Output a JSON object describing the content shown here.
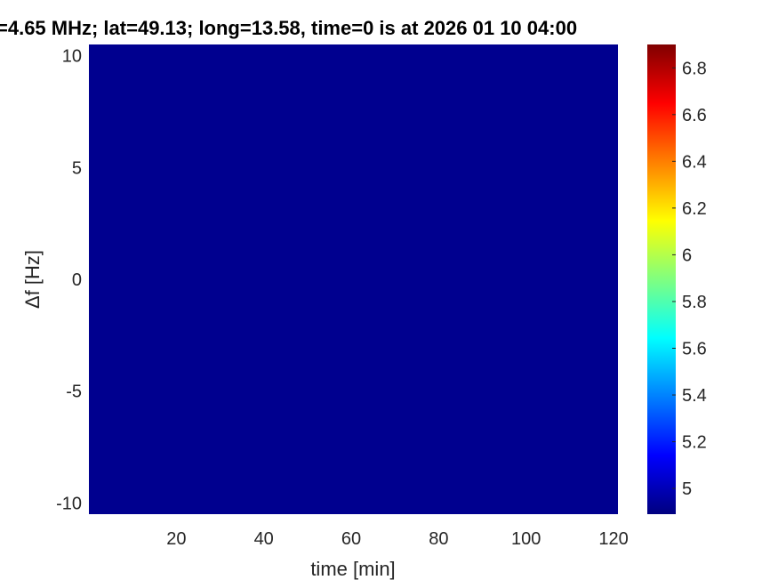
{
  "chart_data": {
    "type": "heatmap",
    "title": "=4.65 MHz;  lat=49.13; long=13.58, time=0 is at 2026 01 10 04:00",
    "xlabel": "time [min]",
    "ylabel": "Δf [Hz]",
    "xlim": [
      0,
      121
    ],
    "ylim": [
      -10.5,
      10.5
    ],
    "xticks": [
      20,
      40,
      60,
      80,
      100,
      120
    ],
    "yticks": [
      -10,
      -5,
      0,
      5,
      10
    ],
    "z_uniform_value": 4.89,
    "colormap": "jet",
    "colorbar": {
      "clim": [
        4.89,
        6.9
      ],
      "ticks": [
        5,
        5.2,
        5.4,
        5.6,
        5.8,
        6,
        6.2,
        6.4,
        6.6,
        6.8
      ],
      "tick_labels": [
        "5",
        "5.2",
        "5.4",
        "5.6",
        "5.8",
        "6",
        "6.2",
        "6.4",
        "6.6",
        "6.8"
      ]
    },
    "grid": false,
    "fill_color": "#00008f"
  }
}
